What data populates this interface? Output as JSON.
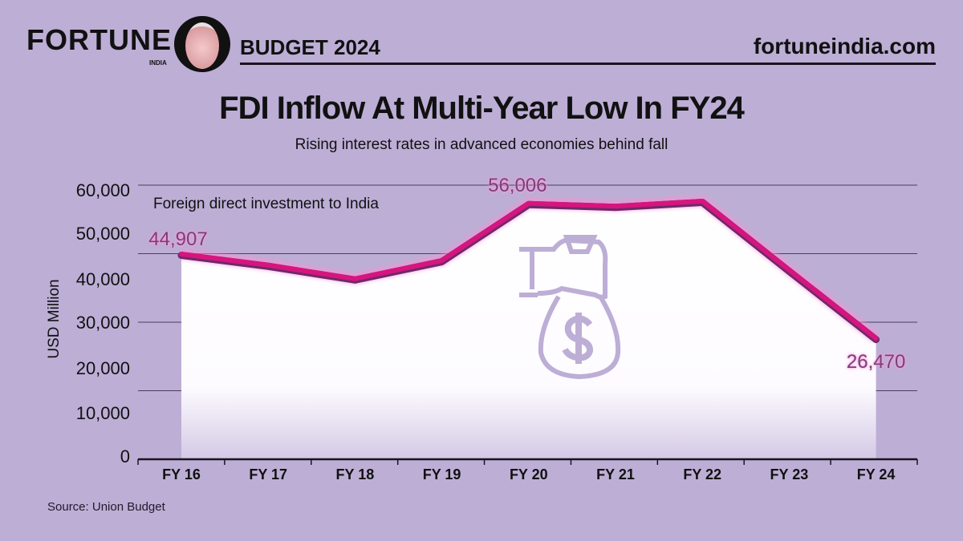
{
  "header": {
    "brand": "FORTUNE",
    "brand_sub": "INDIA",
    "section": "BUDGET 2024",
    "site": "fortuneindia.com"
  },
  "colors": {
    "background": "#bdaed6",
    "line": "#d6157f",
    "line_shadow": "#6d2a6a",
    "label": "#7a3f7e",
    "area": "#ffffff",
    "icon": "#bdaed6"
  },
  "icon": "money-bag-hand-icon",
  "chart_data": {
    "type": "area",
    "title": "FDI Inflow At Multi-Year Low In FY24",
    "subtitle": "Rising interest rates in advanced economies behind fall",
    "annotation": "Foreign direct investment to India",
    "ylabel": "USD Million",
    "xlabel": "",
    "categories": [
      "FY 16",
      "FY 17",
      "FY 18",
      "FY 19",
      "FY 20",
      "FY 21",
      "FY 22",
      "FY 23",
      "FY 24"
    ],
    "values": [
      44907,
      42500,
      39500,
      43500,
      56006,
      55400,
      56500,
      41400,
      26470
    ],
    "data_labels": [
      {
        "index": 0,
        "text": "44,907"
      },
      {
        "index": 4,
        "text": "56,006"
      },
      {
        "index": 8,
        "text": "26,470"
      }
    ],
    "ylim": [
      0,
      60000
    ],
    "yticks": [
      0,
      10000,
      20000,
      30000,
      40000,
      50000,
      60000
    ],
    "ytick_labels": [
      "0",
      "10,000",
      "20,000",
      "30,000",
      "40,000",
      "50,000",
      "60,000"
    ],
    "gridlines": [
      15000,
      30000,
      45000,
      60000
    ],
    "grid": true
  },
  "source": "Source: Union Budget"
}
